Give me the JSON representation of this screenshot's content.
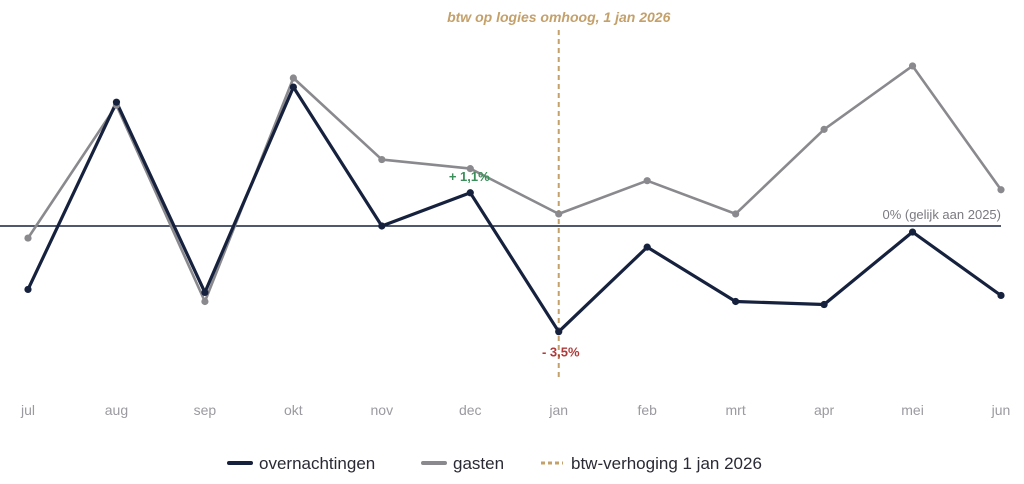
{
  "chart_data": {
    "type": "line",
    "title": "",
    "xlabel": "",
    "ylabel": "",
    "categories": [
      "jul",
      "aug",
      "sep",
      "okt",
      "nov",
      "dec",
      "jan",
      "feb",
      "mrt",
      "apr",
      "mei",
      "jun"
    ],
    "ylim": [
      -5.6,
      5.6
    ],
    "grid": false,
    "series": [
      {
        "name": "overnachtingen",
        "color": "#16213e",
        "values": [
          -2.1,
          4.1,
          -2.2,
          4.6,
          0.0,
          1.1,
          -3.5,
          -0.7,
          -2.5,
          -2.6,
          -0.2,
          -2.3
        ]
      },
      {
        "name": "gasten",
        "color": "#8a8a8e",
        "values": [
          -0.4,
          4.0,
          -2.5,
          4.9,
          2.2,
          1.9,
          0.4,
          1.5,
          0.4,
          3.2,
          5.3,
          1.2
        ]
      }
    ],
    "reference_line": {
      "value": 0,
      "label": "0% (gelijk aan 2025)",
      "color": "#16213e"
    },
    "event_line": {
      "category": "jan",
      "label": "btw op logies omhoog, 1 jan 2026",
      "color": "#c4a06a"
    },
    "annotations": [
      {
        "category": "dec",
        "text": "+ 1,1%",
        "color": "#3a8f5a"
      },
      {
        "category": "jan",
        "text": "- 3,5%",
        "color": "#b03a3a"
      }
    ],
    "legend": {
      "placement": "bottom",
      "entries": [
        {
          "label": "overnachtingen",
          "style": "solid",
          "color": "#16213e"
        },
        {
          "label": "gasten",
          "style": "solid",
          "color": "#8a8a8e"
        },
        {
          "label": "btw-verhoging 1 jan 2026",
          "style": "dashed",
          "color": "#c4a06a"
        }
      ]
    }
  }
}
